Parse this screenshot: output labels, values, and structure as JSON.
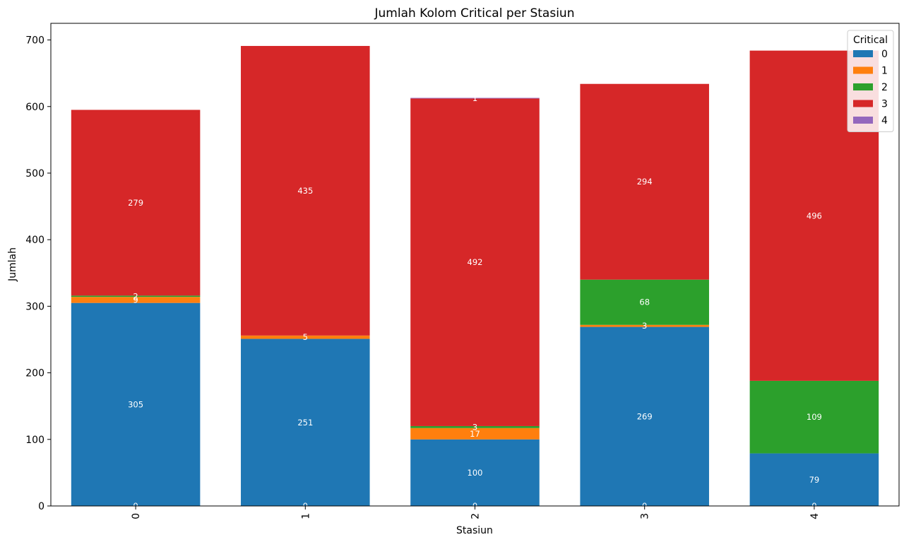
{
  "chart_data": {
    "type": "bar",
    "stacked": true,
    "title": "Jumlah Kolom Critical per Stasiun",
    "xlabel": "Stasiun",
    "ylabel": "Jumlah",
    "categories": [
      "0",
      "1",
      "2",
      "3",
      "4"
    ],
    "yticks": [
      0,
      100,
      200,
      300,
      400,
      500,
      600,
      700
    ],
    "ylim": [
      0,
      725
    ],
    "legend": {
      "title": "Critical",
      "placement": "top-right"
    },
    "grid": false,
    "series": [
      {
        "name": "0",
        "color": "#1f77b4",
        "values": [
          305,
          251,
          100,
          269,
          79
        ],
        "labels": [
          "305",
          "251",
          "100",
          "269",
          "79"
        ]
      },
      {
        "name": "1",
        "color": "#ff7f0e",
        "values": [
          9,
          5,
          17,
          3,
          0
        ],
        "labels": [
          "9",
          "5",
          "17",
          "3",
          "0"
        ]
      },
      {
        "name": "2",
        "color": "#2ca02c",
        "values": [
          2,
          0,
          3,
          68,
          109
        ],
        "labels": [
          "2",
          "0",
          "3",
          "68",
          "109"
        ]
      },
      {
        "name": "3",
        "color": "#d62728",
        "values": [
          279,
          435,
          492,
          294,
          496
        ],
        "labels": [
          "279",
          "435",
          "492",
          "294",
          "496"
        ]
      },
      {
        "name": "4",
        "color": "#9467bd",
        "values": [
          0,
          0,
          1,
          0,
          0
        ],
        "labels": [
          "0",
          "0",
          "1",
          "0",
          "0"
        ]
      }
    ],
    "zero_markers": [
      "0",
      "0",
      "0",
      "0",
      "0"
    ]
  }
}
